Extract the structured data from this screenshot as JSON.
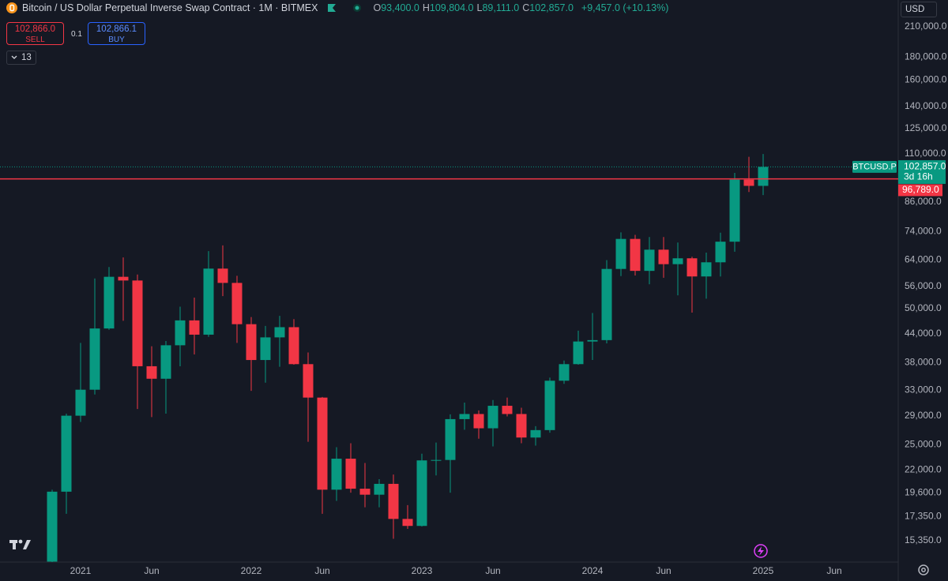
{
  "header": {
    "symbol_title": "Bitcoin / US Dollar Perpetual Inverse Swap Contract · 1M · BITMEX",
    "ohlc": [
      {
        "key": "O",
        "value": "93,400.0"
      },
      {
        "key": "H",
        "value": "109,804.0"
      },
      {
        "key": "L",
        "value": "89,111.0"
      },
      {
        "key": "C",
        "value": "102,857.0"
      }
    ],
    "change": "+9,457.0 (+10.13%)"
  },
  "trade": {
    "sell_price": "102,866.0",
    "sell": "SELL",
    "spread": "0.1",
    "buy_price": "102,866.1",
    "buy": "BUY"
  },
  "indicators_count": "13",
  "currency": "USD",
  "chart_data": {
    "type": "candlestick",
    "log_scale": true,
    "grid": false,
    "up_color": "#089981",
    "down_color": "#f23645",
    "categories": [
      null,
      null,
      "2021",
      null,
      null,
      null,
      null,
      "Jun",
      null,
      null,
      null,
      null,
      null,
      null,
      "2022",
      null,
      null,
      null,
      null,
      "Jun",
      null,
      null,
      null,
      null,
      null,
      null,
      "2023",
      null,
      null,
      null,
      null,
      "Jun",
      null,
      null,
      null,
      null,
      null,
      null,
      "2024",
      null,
      null,
      null,
      null,
      "Jun",
      null,
      null,
      null,
      null,
      null,
      null,
      "2025"
    ],
    "trailing_categories": [
      "Jun"
    ],
    "open": [
      13800,
      19700,
      29000,
      33100,
      45200,
      58800,
      57700,
      37300,
      35000,
      41500,
      47100,
      43800,
      61300,
      57000,
      46200,
      38500,
      43200,
      45500,
      37700,
      31800,
      19900,
      23300,
      20000,
      19400,
      20500,
      17150,
      16550,
      23100,
      23150,
      28500,
      29250,
      27200,
      30500,
      29250,
      25950,
      26950,
      34650,
      37700,
      42300,
      42600,
      61200,
      71300,
      60600,
      67500,
      62700,
      64600,
      58900,
      63300,
      70300,
      96400,
      93400
    ],
    "high": [
      19900,
      29300,
      42000,
      58300,
      61800,
      64900,
      59500,
      41300,
      42400,
      50500,
      52900,
      67000,
      69000,
      59100,
      47900,
      45800,
      48200,
      47400,
      40000,
      31900,
      24700,
      25200,
      22800,
      21000,
      21500,
      18400,
      23900,
      25300,
      29200,
      31000,
      29800,
      31400,
      31800,
      30200,
      27500,
      35200,
      38400,
      44700,
      48900,
      64000,
      73700,
      72800,
      72000,
      72000,
      70000,
      65100,
      66500,
      73600,
      99800,
      108300,
      109804
    ],
    "low": [
      13200,
      17600,
      28100,
      32300,
      44900,
      47000,
      30000,
      28800,
      29300,
      37300,
      39600,
      43300,
      53300,
      42000,
      32900,
      34300,
      37200,
      37600,
      25400,
      17600,
      18800,
      19600,
      18200,
      18200,
      15500,
      16300,
      16500,
      21400,
      19600,
      27000,
      25800,
      24800,
      28900,
      25200,
      24900,
      26600,
      34100,
      37600,
      38500,
      41900,
      59000,
      59200,
      56600,
      58500,
      53500,
      49000,
      52600,
      58900,
      66800,
      90500,
      89111
    ],
    "close": [
      19700,
      29000,
      33100,
      45200,
      58800,
      57700,
      37300,
      35000,
      41500,
      47100,
      43800,
      61300,
      57000,
      46200,
      38500,
      43200,
      45500,
      37700,
      31800,
      19900,
      23300,
      20000,
      19400,
      20500,
      17150,
      16550,
      23100,
      23150,
      28500,
      29250,
      27200,
      30500,
      29250,
      25950,
      26950,
      34650,
      37700,
      42300,
      42600,
      61200,
      71300,
      60600,
      67500,
      62700,
      64600,
      58900,
      63300,
      70300,
      96400,
      93400,
      102857
    ],
    "ylim": [
      13770,
      240500
    ],
    "yticks": [
      {
        "value": 210000,
        "label": "210,000.0"
      },
      {
        "value": 180000,
        "label": "180,000.0"
      },
      {
        "value": 160000,
        "label": "160,000.0"
      },
      {
        "value": 140000,
        "label": "140,000.0"
      },
      {
        "value": 125000,
        "label": "125,000.0"
      },
      {
        "value": 110000,
        "label": "110,000.0"
      },
      {
        "value": 86000,
        "label": "86,000.0"
      },
      {
        "value": 74000,
        "label": "74,000.0"
      },
      {
        "value": 64000,
        "label": "64,000.0"
      },
      {
        "value": 56000,
        "label": "56,000.0"
      },
      {
        "value": 50000,
        "label": "50,000.0"
      },
      {
        "value": 44000,
        "label": "44,000.0"
      },
      {
        "value": 38000,
        "label": "38,000.0"
      },
      {
        "value": 33000,
        "label": "33,000.0"
      },
      {
        "value": 29000,
        "label": "29,000.0"
      },
      {
        "value": 25000,
        "label": "25,000.0"
      },
      {
        "value": 22000,
        "label": "22,000.0"
      },
      {
        "value": 19600,
        "label": "19,600.0"
      },
      {
        "value": 17350,
        "label": "17,350.0"
      },
      {
        "value": 15350,
        "label": "15,350.0"
      }
    ],
    "last_price": {
      "symbol": "BTCUSD.P",
      "value": 102857,
      "label": "102,857.0",
      "countdown": "3d 16h",
      "color": "#089981"
    },
    "price_lines": [
      {
        "value": 96789,
        "label": "96,789.0",
        "color": "#f23645"
      }
    ]
  }
}
